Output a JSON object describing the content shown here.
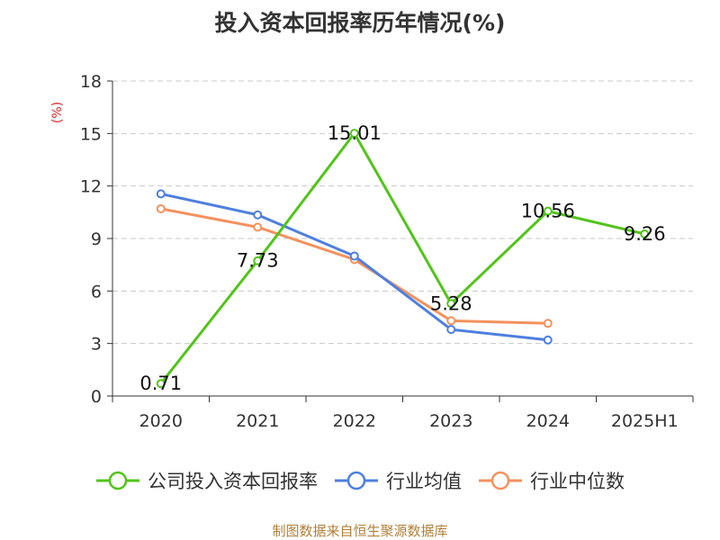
{
  "chart_data": {
    "type": "line",
    "title": "投入资本回报率历年情况(%)",
    "ylabel": "(%)",
    "categories": [
      "2020",
      "2021",
      "2022",
      "2023",
      "2024",
      "2025H1"
    ],
    "ylim": [
      0,
      18
    ],
    "yticks": [
      0,
      3,
      6,
      9,
      12,
      15,
      18
    ],
    "grid": true,
    "legend_position": "bottom",
    "series": [
      {
        "name": "公司投入资本回报率",
        "color": "#52c41a",
        "values": [
          0.71,
          7.73,
          15.01,
          5.28,
          10.56,
          9.26
        ],
        "labels": [
          "0.71",
          "7.73",
          "15.01",
          "5.28",
          "10.56",
          "9.26"
        ]
      },
      {
        "name": "行业均值",
        "color": "#4e7fdf",
        "values": [
          11.55,
          10.35,
          8.0,
          3.8,
          3.2,
          null
        ]
      },
      {
        "name": "行业中位数",
        "color": "#f4915d",
        "values": [
          10.7,
          9.65,
          7.8,
          4.3,
          4.15,
          null
        ]
      }
    ]
  },
  "source": "制图数据来自恒生聚源数据库",
  "colors": {
    "axis": "#333333",
    "grid": "#c8c8c8",
    "ylabel": "#d9262a"
  }
}
